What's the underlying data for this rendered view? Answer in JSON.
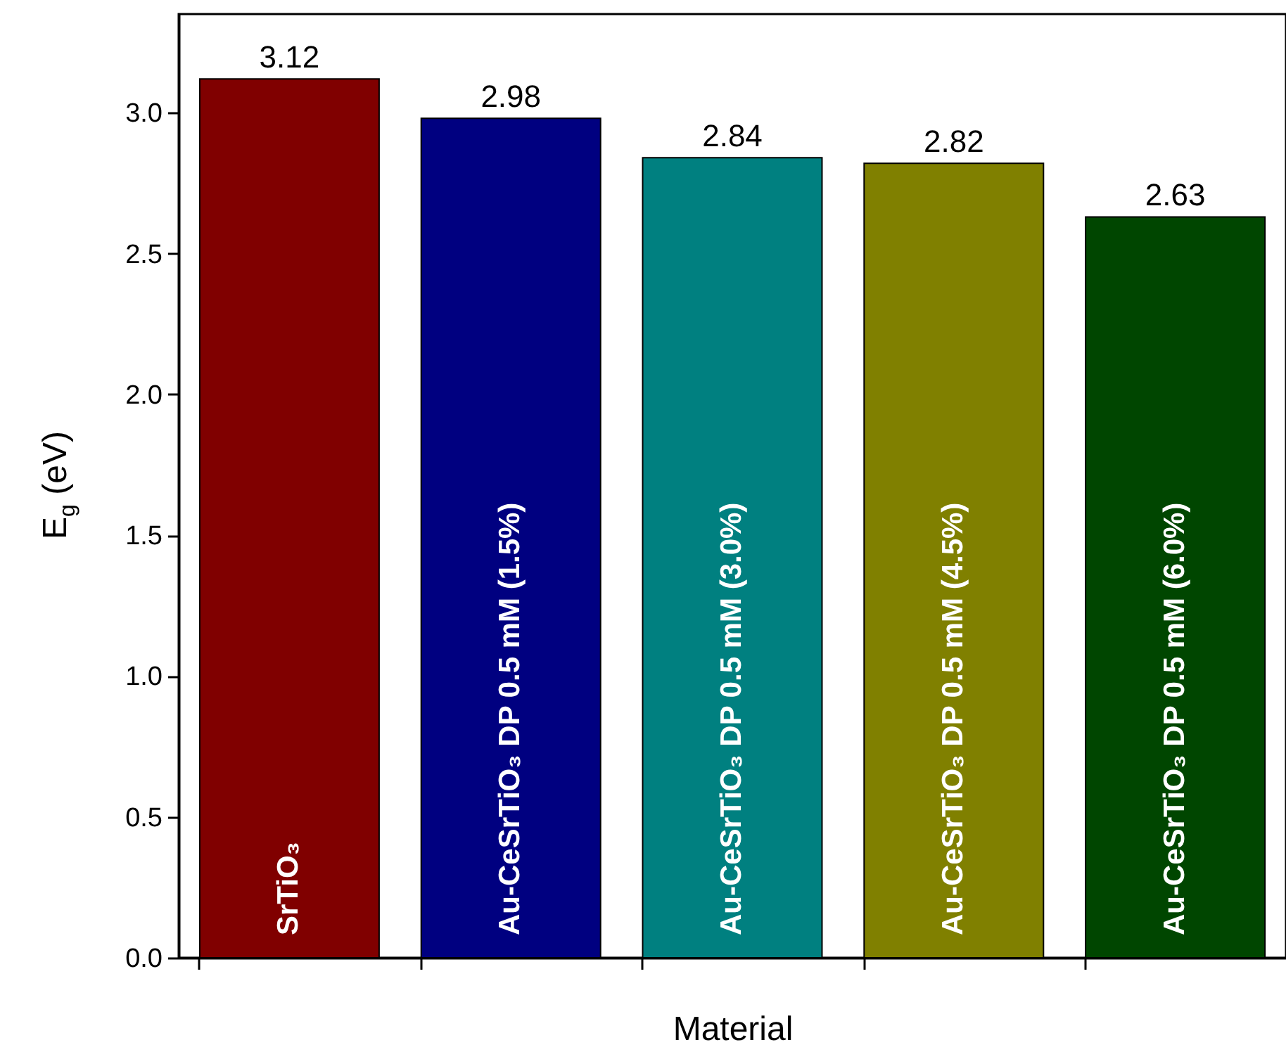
{
  "chart_data": {
    "type": "bar",
    "xlabel": "Material",
    "ylabel": "E$_{g}$ (eV)",
    "categories": [
      "SrTiO₃",
      "Au-CeSrTiO₃ DP 0.5 mM  (1.5%)",
      "Au-CeSrTiO₃ DP 0.5 mM  (3.0%)",
      "Au-CeSrTiO₃ DP 0.5 mM  (4.5%)",
      "Au-CeSrTiO₃ DP 0.5 mM (6.0%)"
    ],
    "values": [
      3.12,
      2.98,
      2.84,
      2.82,
      2.63
    ],
    "colors": [
      "#800000",
      "#000080",
      "#008080",
      "#808000",
      "#004600"
    ],
    "data_labels": true,
    "ylim": [
      0,
      3.35
    ],
    "yticks": [
      {
        "value": 0,
        "label": "0.0"
      },
      {
        "value": 0.5,
        "label": "0.5"
      },
      {
        "value": 1,
        "label": "1.0"
      },
      {
        "value": 1.5,
        "label": "1.5"
      },
      {
        "value": 2,
        "label": "2.0"
      },
      {
        "value": 2.5,
        "label": "2.5"
      },
      {
        "value": 3,
        "label": "3.0"
      }
    ],
    "grid": false
  }
}
